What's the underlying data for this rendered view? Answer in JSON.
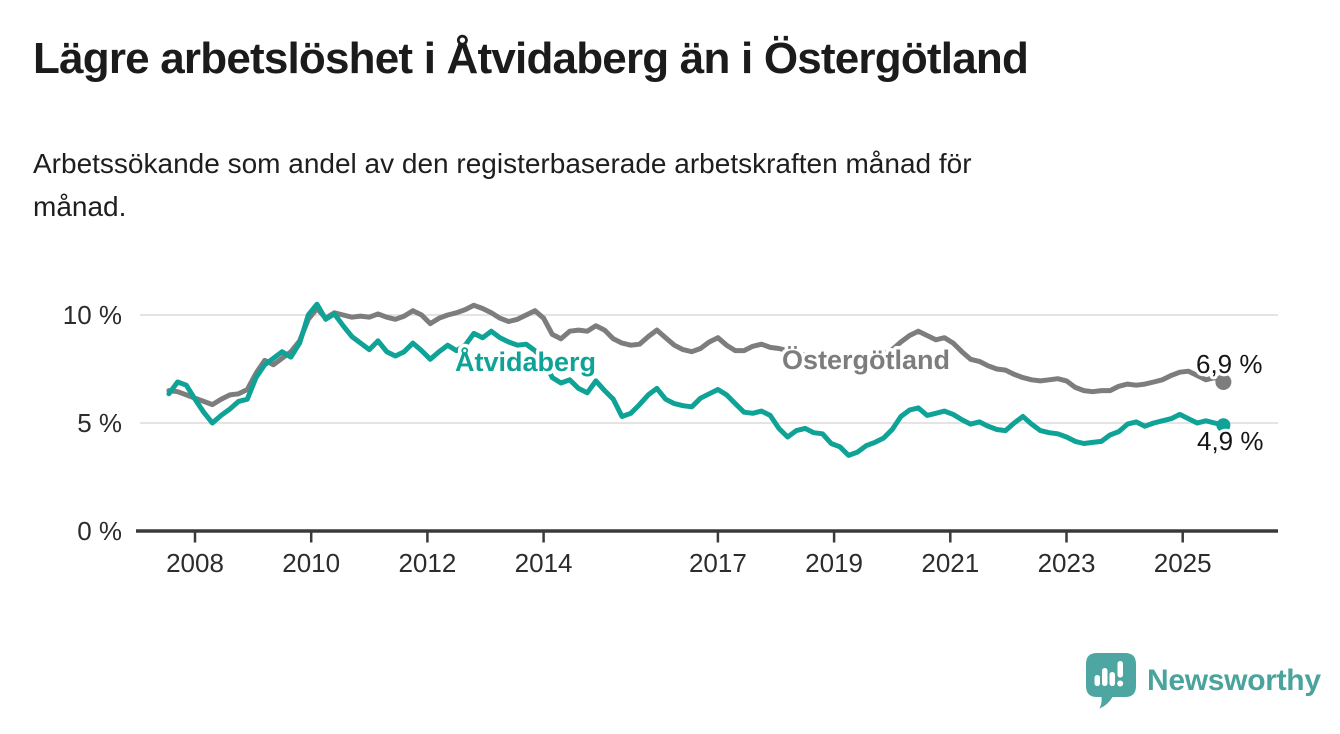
{
  "header": {
    "title": "Lägre arbetslöshet i Åtvidaberg än i Östergötland",
    "subtitle": "Arbetssökande som andel av den registerbaserade arbetskraften månad för\nmånad."
  },
  "chart_data": {
    "type": "line",
    "title": "Lägre arbetslöshet i Åtvidaberg än i Östergötland",
    "xlabel": "",
    "ylabel": "Arbetssökande som andel av den registerbaserade arbetskraften",
    "y_unit": "%",
    "grid": "horizontal",
    "legend_position": "inline-labels",
    "ylim": [
      0,
      11.2
    ],
    "xlim": [
      2007.3,
      2026.3
    ],
    "y_ticks": [
      {
        "value": 0,
        "label": "0 %"
      },
      {
        "value": 5,
        "label": "5 %"
      },
      {
        "value": 10,
        "label": "10 %"
      }
    ],
    "x_ticks": [
      {
        "value": 2008,
        "label": "2008"
      },
      {
        "value": 2010,
        "label": "2010"
      },
      {
        "value": 2012,
        "label": "2012"
      },
      {
        "value": 2014,
        "label": "2014"
      },
      {
        "value": 2017,
        "label": "2017"
      },
      {
        "value": 2019,
        "label": "2019"
      },
      {
        "value": 2021,
        "label": "2021"
      },
      {
        "value": 2023,
        "label": "2023"
      },
      {
        "value": 2025,
        "label": "2025"
      }
    ],
    "x": [
      2007.55,
      2007.7,
      2007.85,
      2008.0,
      2008.15,
      2008.3,
      2008.45,
      2008.6,
      2008.75,
      2008.9,
      2009.05,
      2009.2,
      2009.35,
      2009.5,
      2009.65,
      2009.8,
      2009.95,
      2010.1,
      2010.25,
      2010.4,
      2010.55,
      2010.7,
      2010.85,
      2011.0,
      2011.15,
      2011.3,
      2011.45,
      2011.6,
      2011.75,
      2011.9,
      2012.05,
      2012.2,
      2012.35,
      2012.5,
      2012.65,
      2012.8,
      2012.95,
      2013.1,
      2013.25,
      2013.4,
      2013.55,
      2013.7,
      2013.85,
      2014.0,
      2014.15,
      2014.3,
      2014.45,
      2014.6,
      2014.75,
      2014.9,
      2015.05,
      2015.2,
      2015.35,
      2015.5,
      2015.65,
      2015.8,
      2015.95,
      2016.1,
      2016.25,
      2016.4,
      2016.55,
      2016.7,
      2016.85,
      2017.0,
      2017.15,
      2017.3,
      2017.45,
      2017.6,
      2017.75,
      2017.9,
      2018.05,
      2018.2,
      2018.35,
      2018.5,
      2018.65,
      2018.8,
      2018.95,
      2019.1,
      2019.25,
      2019.4,
      2019.55,
      2019.7,
      2019.85,
      2020.0,
      2020.15,
      2020.3,
      2020.45,
      2020.6,
      2020.75,
      2020.9,
      2021.05,
      2021.2,
      2021.35,
      2021.5,
      2021.65,
      2021.8,
      2021.95,
      2022.1,
      2022.25,
      2022.4,
      2022.55,
      2022.7,
      2022.85,
      2023.0,
      2023.15,
      2023.3,
      2023.45,
      2023.6,
      2023.75,
      2023.9,
      2024.05,
      2024.2,
      2024.35,
      2024.5,
      2024.65,
      2024.8,
      2024.95,
      2025.1,
      2025.25,
      2025.4,
      2025.55,
      2025.7
    ],
    "series": [
      {
        "name": "Åtvidaberg",
        "color": "#0fa296",
        "end_label": "4,9 %",
        "end_value": 4.9,
        "values": [
          6.35,
          6.9,
          6.75,
          6.1,
          5.5,
          5.0,
          5.35,
          5.65,
          6.0,
          6.1,
          7.1,
          7.7,
          8.0,
          8.3,
          8.05,
          8.7,
          10.0,
          10.5,
          9.8,
          10.05,
          9.5,
          9.0,
          8.7,
          8.4,
          8.8,
          8.3,
          8.1,
          8.3,
          8.7,
          8.35,
          7.95,
          8.3,
          8.6,
          8.35,
          8.6,
          9.15,
          8.95,
          9.25,
          8.95,
          8.75,
          8.6,
          8.65,
          8.35,
          7.9,
          7.1,
          6.85,
          7.0,
          6.6,
          6.4,
          6.95,
          6.5,
          6.1,
          5.3,
          5.45,
          5.85,
          6.3,
          6.6,
          6.1,
          5.9,
          5.8,
          5.75,
          6.15,
          6.35,
          6.55,
          6.3,
          5.9,
          5.5,
          5.45,
          5.55,
          5.35,
          4.75,
          4.35,
          4.65,
          4.75,
          4.55,
          4.5,
          4.05,
          3.9,
          3.5,
          3.65,
          3.95,
          4.1,
          4.3,
          4.7,
          5.3,
          5.6,
          5.7,
          5.35,
          5.45,
          5.55,
          5.4,
          5.15,
          4.95,
          5.05,
          4.85,
          4.7,
          4.65,
          5.0,
          5.3,
          4.95,
          4.65,
          4.55,
          4.5,
          4.35,
          4.15,
          4.05,
          4.1,
          4.15,
          4.45,
          4.6,
          4.95,
          5.05,
          4.85,
          5.0,
          5.1,
          5.2,
          5.4,
          5.2,
          5.0,
          5.1,
          5.0,
          4.9
        ]
      },
      {
        "name": "Östergötland",
        "color": "#7d7d7d",
        "end_label": "6,9 %",
        "end_value": 6.9,
        "values": [
          6.5,
          6.45,
          6.3,
          6.15,
          6.0,
          5.85,
          6.1,
          6.3,
          6.35,
          6.55,
          7.3,
          7.9,
          7.7,
          8.0,
          8.3,
          8.8,
          9.8,
          10.3,
          9.85,
          10.1,
          10.0,
          9.9,
          9.95,
          9.9,
          10.05,
          9.9,
          9.8,
          9.95,
          10.2,
          10.0,
          9.6,
          9.85,
          10.0,
          10.1,
          10.25,
          10.45,
          10.3,
          10.1,
          9.85,
          9.7,
          9.8,
          10.0,
          10.2,
          9.85,
          9.1,
          8.9,
          9.25,
          9.3,
          9.25,
          9.5,
          9.3,
          8.9,
          8.7,
          8.6,
          8.65,
          9.0,
          9.3,
          8.95,
          8.6,
          8.4,
          8.3,
          8.45,
          8.75,
          8.95,
          8.6,
          8.35,
          8.35,
          8.55,
          8.65,
          8.5,
          8.45,
          8.35,
          8.25,
          8.15,
          8.05,
          8.0,
          7.9,
          7.9,
          7.95,
          8.0,
          8.05,
          8.1,
          8.2,
          8.4,
          8.75,
          9.05,
          9.25,
          9.05,
          8.85,
          8.95,
          8.7,
          8.3,
          7.95,
          7.85,
          7.65,
          7.5,
          7.45,
          7.25,
          7.1,
          7.0,
          6.95,
          7.0,
          7.05,
          6.95,
          6.65,
          6.5,
          6.45,
          6.5,
          6.5,
          6.7,
          6.8,
          6.75,
          6.8,
          6.9,
          7.0,
          7.2,
          7.35,
          7.4,
          7.2,
          7.0,
          7.1,
          6.9
        ]
      }
    ],
    "colors": {
      "axis": "#3a3a3a",
      "gridline": "#dcdcdc",
      "tick_text": "#2c2c2c",
      "value_text": "#161616"
    }
  },
  "branding": {
    "logo_text": "Newsworthy",
    "logo_icon": "newsworthy-speech-bubble-chart-icon",
    "logo_color": "#4ba39d"
  }
}
